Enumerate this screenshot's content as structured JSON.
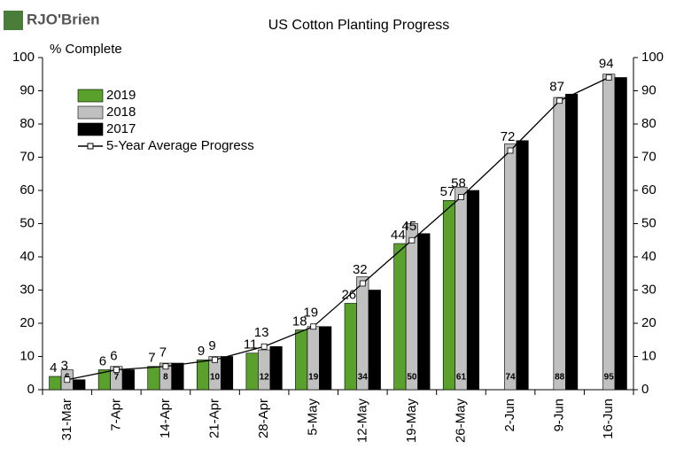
{
  "chart_data": {
    "type": "bar",
    "logo": "RJO'Brien",
    "title": "US Cotton Planting Progress",
    "y_label": "% Complete",
    "categories": [
      "31-Mar",
      "7-Apr",
      "14-Apr",
      "21-Apr",
      "28-Apr",
      "5-May",
      "12-May",
      "19-May",
      "26-May",
      "2-Jun",
      "9-Jun",
      "16-Jun"
    ],
    "series": [
      {
        "name": "2019",
        "color": "#5aa02c",
        "values": [
          4,
          6,
          7,
          9,
          11,
          18,
          26,
          44,
          57,
          null,
          null,
          null
        ]
      },
      {
        "name": "2018",
        "color": "#c0c0c0",
        "values": [
          6,
          7,
          8,
          10,
          12,
          19,
          34,
          50,
          61,
          74,
          88,
          95
        ]
      },
      {
        "name": "2017",
        "color": "#000000",
        "values": [
          3,
          6,
          8,
          10,
          13,
          19,
          30,
          47,
          60,
          75,
          89,
          94
        ]
      },
      {
        "name": "5-Year Average Progress",
        "type": "line",
        "color": "#000000",
        "values": [
          3,
          6,
          7,
          9,
          13,
          19,
          32,
          45,
          58,
          72,
          87,
          94
        ]
      }
    ],
    "ylim": [
      0,
      100
    ],
    "yticks": [
      0,
      10,
      20,
      30,
      40,
      50,
      60,
      70,
      80,
      90,
      100
    ],
    "y2lim": [
      0,
      100
    ],
    "y2ticks": [
      0,
      10,
      20,
      30,
      40,
      50,
      60,
      70,
      80,
      90,
      100
    ],
    "legend": "upper left"
  }
}
